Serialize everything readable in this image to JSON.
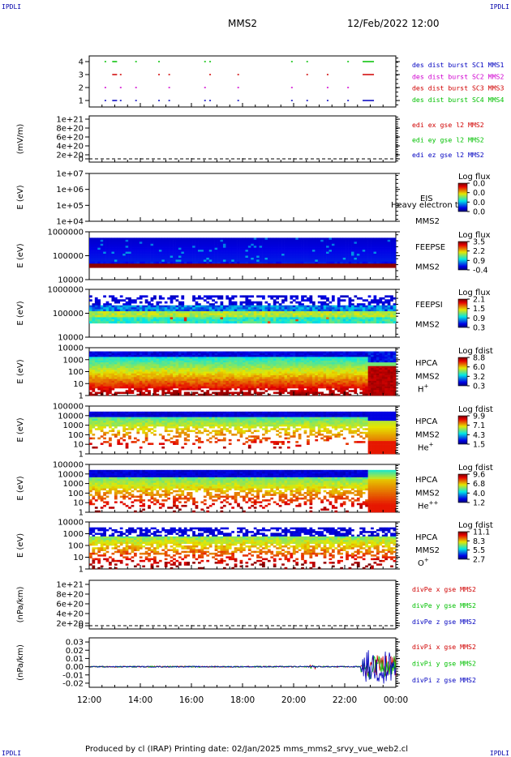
{
  "header": {
    "corner_tl": "IPDLI",
    "corner_tr": "IPDLI",
    "corner_bl": "IPDLI",
    "corner_br": "IPDLI",
    "spacecraft": "MMS2",
    "datetime": "12/Feb/2022 12:00"
  },
  "footer": {
    "text": "Produced by cl (IRAP)   Printing date: 02/Jan/2025   mms_mms2_srvy_vue_web2.cl"
  },
  "colors": {
    "red": "#d00000",
    "green": "#00c000",
    "blue": "#0000c0",
    "magenta": "#d000d0"
  },
  "chart_data": [
    {
      "id": "burst",
      "type": "scatter",
      "yticks": [
        "4",
        "3",
        "2",
        "1"
      ],
      "ylim": [
        0.5,
        4.5
      ],
      "legend": [
        {
          "text": "des dist burst SC1 MMS1",
          "color": "#0000c0"
        },
        {
          "text": "des dist burst SC2 MMS2",
          "color": "#d000d0"
        },
        {
          "text": "des dist burst SC3 MMS3",
          "color": "#d00000"
        },
        {
          "text": "des dist burst SC4 MMS4",
          "color": "#00c000"
        }
      ],
      "x": [
        12.6,
        12.9,
        13.2,
        13.8,
        14.7,
        15.1,
        16.5,
        16.7,
        17.8,
        19.9,
        20.5,
        21.3,
        22.1,
        22.7
      ]
    },
    {
      "id": "edi",
      "type": "line",
      "ylabel": "(mV/m)",
      "yticks": [
        "1e+21",
        "8e+20",
        "6e+20",
        "4e+20",
        "2e+20",
        "0"
      ],
      "legend": [
        {
          "text": "edi ex gse l2 MMS2",
          "color": "#d00000"
        },
        {
          "text": "edi ey gse l2 MMS2",
          "color": "#00c000"
        },
        {
          "text": "edi ez gse l2 MMS2",
          "color": "#0000c0"
        }
      ]
    },
    {
      "id": "eis",
      "type": "heatmap",
      "ylabel": "E (eV)",
      "yticks": [
        "1e+07",
        "1e+06",
        "1e+05",
        "1e+04"
      ],
      "labels": [
        "EIS",
        "MMS2"
      ],
      "overlay_text": "Heavy electron to",
      "colorbar_title": "Log flux",
      "colorbar_ticks": [
        "0.0",
        "0.0",
        "0.0",
        "0.0"
      ]
    },
    {
      "id": "feepse",
      "type": "heatmap",
      "ylabel": "E (eV)",
      "yticks": [
        "1000000",
        "100000",
        "10000"
      ],
      "labels": [
        "FEEPSE",
        "MMS2"
      ],
      "colorbar_title": "Log flux",
      "colorbar_ticks": [
        "3.5",
        "2.2",
        "0.9",
        "-0.4"
      ]
    },
    {
      "id": "feepsi",
      "type": "heatmap",
      "ylabel": "E (eV)",
      "yticks": [
        "1000000",
        "100000",
        "10000"
      ],
      "labels": [
        "FEEPSI",
        "MMS2"
      ],
      "colorbar_title": "Log flux",
      "colorbar_ticks": [
        "2.1",
        "1.5",
        "0.9",
        "0.3"
      ]
    },
    {
      "id": "hpca_h",
      "type": "heatmap",
      "ylabel": "E (eV)",
      "yticks": [
        "10000",
        "1000",
        "100",
        "10",
        "1"
      ],
      "labels": [
        "HPCA",
        "MMS2"
      ],
      "species": "H",
      "species_sup": "+",
      "colorbar_title": "Log fdist",
      "colorbar_ticks": [
        "8.8",
        "6.0",
        "3.2",
        "0.3"
      ]
    },
    {
      "id": "hpca_he",
      "type": "heatmap",
      "ylabel": "E (eV)",
      "yticks": [
        "100000",
        "10000",
        "1000",
        "100",
        "10",
        "1"
      ],
      "labels": [
        "HPCA",
        "MMS2"
      ],
      "species": "He",
      "species_sup": "+",
      "colorbar_title": "Log fdist",
      "colorbar_ticks": [
        "9.9",
        "7.1",
        "4.3",
        "1.5"
      ]
    },
    {
      "id": "hpca_he2",
      "type": "heatmap",
      "ylabel": "E (eV)",
      "yticks": [
        "100000",
        "10000",
        "1000",
        "100",
        "10",
        "1"
      ],
      "labels": [
        "HPCA",
        "MMS2"
      ],
      "species": "He",
      "species_sup": "++",
      "colorbar_title": "Log fdist",
      "colorbar_ticks": [
        "9.6",
        "6.8",
        "4.0",
        "1.2"
      ]
    },
    {
      "id": "hpca_o",
      "type": "heatmap",
      "ylabel": "E (eV)",
      "yticks": [
        "10000",
        "1000",
        "100",
        "10",
        "1"
      ],
      "labels": [
        "HPCA",
        "MMS2"
      ],
      "species": "O",
      "species_sup": "+",
      "colorbar_title": "Log fdist",
      "colorbar_ticks": [
        "11.1",
        "8.3",
        "5.5",
        "2.7"
      ]
    },
    {
      "id": "divpe",
      "type": "line",
      "ylabel": "(nPa/km)",
      "yticks": [
        "1e+21",
        "8e+20",
        "6e+20",
        "4e+20",
        "2e+20",
        "0"
      ],
      "legend": [
        {
          "text": "divPe x gse MMS2",
          "color": "#d00000"
        },
        {
          "text": "divPe y gse MMS2",
          "color": "#00c000"
        },
        {
          "text": "divPe z gse MMS2",
          "color": "#0000c0"
        }
      ]
    },
    {
      "id": "divpi",
      "type": "line",
      "ylabel": "(nPa/km)",
      "yticks": [
        "0.03",
        "0.02",
        "0.01",
        "0.00",
        "-0.01",
        "-0.02"
      ],
      "ylim": [
        -0.025,
        0.035
      ],
      "legend": [
        {
          "text": "divPi x gse MMS2",
          "color": "#d00000"
        },
        {
          "text": "divPi y gse MMS2",
          "color": "#00c000"
        },
        {
          "text": "divPi z gse MMS2",
          "color": "#0000c0"
        }
      ]
    }
  ],
  "xaxis": {
    "ticks": [
      "12:00",
      "14:00",
      "16:00",
      "18:00",
      "20:00",
      "22:00",
      "00:00"
    ],
    "xlim_hours": [
      12,
      24
    ]
  }
}
